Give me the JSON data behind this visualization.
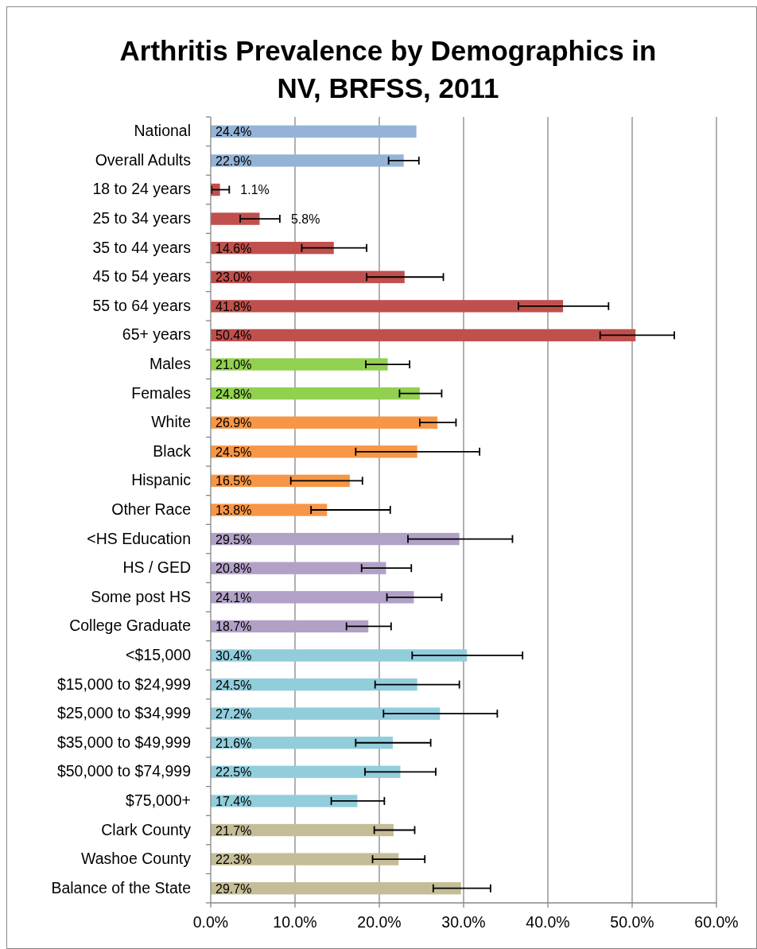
{
  "chart_data": {
    "type": "bar",
    "orientation": "horizontal",
    "title": "Arthritis Prevalence by Demographics in NV, BRFSS, 2011",
    "categories": [
      "National",
      "Overall Adults",
      "18 to 24 years",
      "25 to 34 years",
      "35 to 44 years",
      "45 to 54 years",
      "55 to 64 years",
      "65+ years",
      "Males",
      "Females",
      "White",
      "Black",
      "Hispanic",
      "Other Race",
      "<HS Education",
      "HS / GED",
      "Some post HS",
      "College Graduate",
      "<$15,000",
      "$15,000 to $24,999",
      "$25,000 to $34,999",
      "$35,000 to $49,999",
      "$50,000 to $74,999",
      "$75,000+",
      "Clark County",
      "Washoe County",
      "Balance of the State"
    ],
    "values": [
      24.4,
      22.9,
      1.1,
      5.8,
      14.6,
      23.0,
      41.8,
      50.4,
      21.0,
      24.8,
      26.9,
      24.5,
      16.5,
      13.8,
      29.5,
      20.8,
      24.1,
      18.7,
      30.4,
      24.5,
      27.2,
      21.6,
      22.5,
      17.4,
      21.7,
      22.3,
      29.7
    ],
    "value_labels": [
      "24.4%",
      "22.9%",
      "1.1%",
      "5.8%",
      "14.6%",
      "23.0%",
      "41.8%",
      "50.4%",
      "21.0%",
      "24.8%",
      "26.9%",
      "24.5%",
      "16.5%",
      "13.8%",
      "29.5%",
      "20.8%",
      "24.1%",
      "18.7%",
      "30.4%",
      "24.5%",
      "27.2%",
      "21.6%",
      "22.5%",
      "17.4%",
      "21.7%",
      "22.3%",
      "29.7%"
    ],
    "errors": [
      null,
      [
        21.1,
        24.7
      ],
      [
        0.1,
        2.2
      ],
      [
        3.5,
        8.2
      ],
      [
        10.8,
        18.5
      ],
      [
        18.5,
        27.6
      ],
      [
        36.5,
        47.2
      ],
      [
        46.2,
        55.0
      ],
      [
        18.4,
        23.6
      ],
      [
        22.4,
        27.4
      ],
      [
        24.8,
        29.1
      ],
      [
        17.2,
        31.9
      ],
      [
        9.5,
        18.0
      ],
      [
        11.9,
        21.3
      ],
      [
        23.4,
        35.8
      ],
      [
        17.9,
        23.8
      ],
      [
        20.9,
        27.4
      ],
      [
        16.1,
        21.4
      ],
      [
        23.9,
        37.0
      ],
      [
        19.5,
        29.5
      ],
      [
        20.5,
        34.0
      ],
      [
        17.2,
        26.1
      ],
      [
        18.3,
        26.7
      ],
      [
        14.3,
        20.6
      ],
      [
        19.4,
        24.2
      ],
      [
        19.2,
        25.4
      ],
      [
        26.4,
        33.2
      ]
    ],
    "colors": [
      "#95b3d7",
      "#95b3d7",
      "#c0504d",
      "#c0504d",
      "#c0504d",
      "#c0504d",
      "#c0504d",
      "#c0504d",
      "#92d050",
      "#92d050",
      "#f79646",
      "#f79646",
      "#f79646",
      "#f79646",
      "#b2a1c7",
      "#b2a1c7",
      "#b2a1c7",
      "#b2a1c7",
      "#92cddc",
      "#92cddc",
      "#92cddc",
      "#92cddc",
      "#92cddc",
      "#92cddc",
      "#c4bd97",
      "#c4bd97",
      "#c4bd97"
    ],
    "xlim": [
      0,
      60
    ],
    "xticks": [
      {
        "value": 0,
        "label": "0.0%"
      },
      {
        "value": 10,
        "label": "10.0%"
      },
      {
        "value": 20,
        "label": "20.0%"
      },
      {
        "value": 30,
        "label": "30.0%"
      },
      {
        "value": 40,
        "label": "40.0%"
      },
      {
        "value": 50,
        "label": "50.0%"
      },
      {
        "value": 60,
        "label": "60.0%"
      }
    ],
    "grid": "x"
  }
}
